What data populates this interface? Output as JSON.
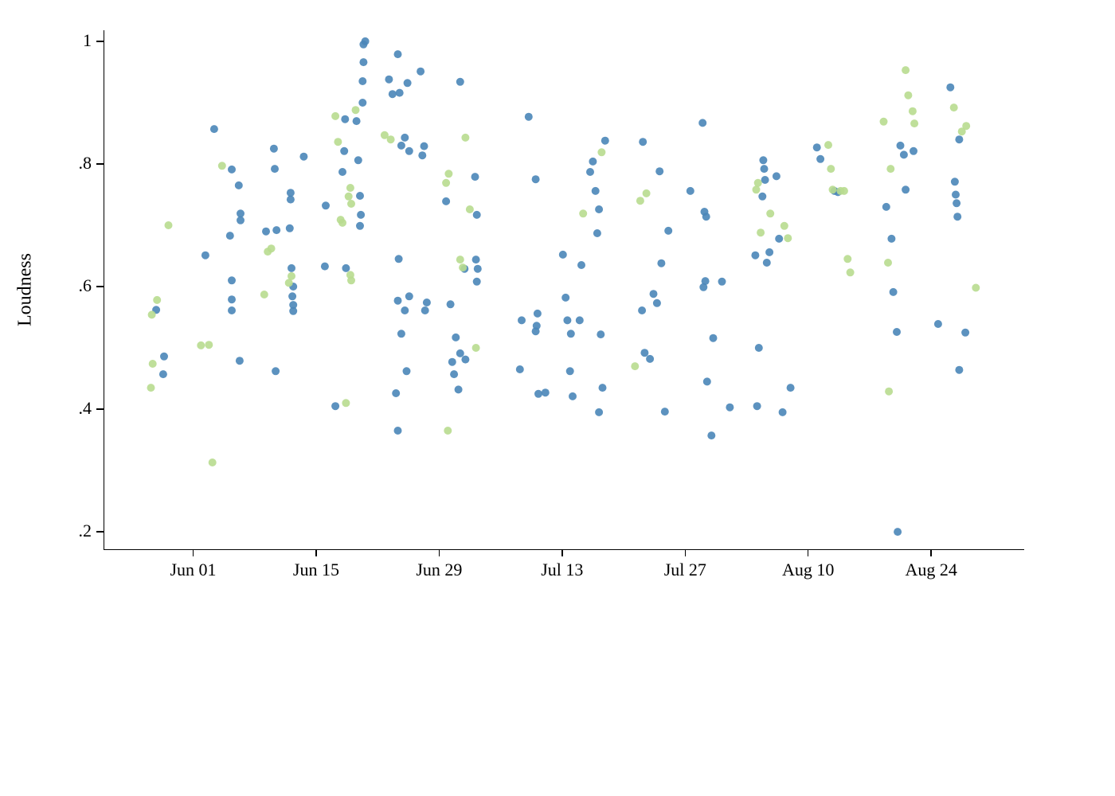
{
  "chart_data": {
    "type": "scatter",
    "title": "",
    "xlabel": "",
    "ylabel": "Loudness",
    "x_unit": "days_since_Jun_01",
    "xlim": [
      -10.2,
      94.5
    ],
    "ylim": [
      0.1715,
      1.0181
    ],
    "grid": false,
    "legend": "none",
    "x_ticks": [
      {
        "value": 0,
        "label": "Jun 01"
      },
      {
        "value": 14,
        "label": "Jun 15"
      },
      {
        "value": 28,
        "label": "Jun 29"
      },
      {
        "value": 42,
        "label": "Jul 13"
      },
      {
        "value": 56,
        "label": "Jul 27"
      },
      {
        "value": 70,
        "label": "Aug 10"
      },
      {
        "value": 84,
        "label": "Aug 24"
      }
    ],
    "y_ticks": [
      {
        "value": 0.2,
        "label": ".2"
      },
      {
        "value": 0.4,
        "label": ".4"
      },
      {
        "value": 0.6,
        "label": ".6"
      },
      {
        "value": 0.8,
        "label": ".8"
      },
      {
        "value": 1.0,
        "label": "1"
      }
    ],
    "point_radius": 5,
    "point_opacity": 0.9,
    "series": [
      {
        "name": "series-blue",
        "color": "#4a86b8",
        "points": [
          [
            -4.3,
            0.562
          ],
          [
            -3.4,
            0.486
          ],
          [
            -3.5,
            0.457
          ],
          [
            1.3,
            0.651
          ],
          [
            2.3,
            0.857
          ],
          [
            4.3,
            0.791
          ],
          [
            4.1,
            0.683
          ],
          [
            4.3,
            0.61
          ],
          [
            4.3,
            0.579
          ],
          [
            4.3,
            0.561
          ],
          [
            5.1,
            0.765
          ],
          [
            5.3,
            0.719
          ],
          [
            5.3,
            0.708
          ],
          [
            5.2,
            0.479
          ],
          [
            8.2,
            0.69
          ],
          [
            9.1,
            0.825
          ],
          [
            9.2,
            0.792
          ],
          [
            9.3,
            0.462
          ],
          [
            9.4,
            0.692
          ],
          [
            10.9,
            0.695
          ],
          [
            11.0,
            0.753
          ],
          [
            11.0,
            0.742
          ],
          [
            11.1,
            0.63
          ],
          [
            11.3,
            0.6
          ],
          [
            11.2,
            0.584
          ],
          [
            11.3,
            0.57
          ],
          [
            11.3,
            0.56
          ],
          [
            12.5,
            0.812
          ],
          [
            15.0,
            0.732
          ],
          [
            14.9,
            0.633
          ],
          [
            16.1,
            0.405
          ],
          [
            17.1,
            0.821
          ],
          [
            16.9,
            0.787
          ],
          [
            17.3,
            0.63
          ],
          [
            17.2,
            0.873
          ],
          [
            18.5,
            0.87
          ],
          [
            18.7,
            0.806
          ],
          [
            18.9,
            0.748
          ],
          [
            19.0,
            0.717
          ],
          [
            18.9,
            0.699
          ],
          [
            19.2,
            0.935
          ],
          [
            19.3,
            0.966
          ],
          [
            19.3,
            0.995
          ],
          [
            19.5,
            1.0
          ],
          [
            19.2,
            0.9
          ],
          [
            22.2,
            0.938
          ],
          [
            22.6,
            0.914
          ],
          [
            23.2,
            0.979
          ],
          [
            23.4,
            0.916
          ],
          [
            23.6,
            0.83
          ],
          [
            24.0,
            0.843
          ],
          [
            24.3,
            0.932
          ],
          [
            24.5,
            0.821
          ],
          [
            23.3,
            0.645
          ],
          [
            23.2,
            0.577
          ],
          [
            23.6,
            0.523
          ],
          [
            23.0,
            0.426
          ],
          [
            23.2,
            0.365
          ],
          [
            24.0,
            0.561
          ],
          [
            24.2,
            0.462
          ],
          [
            24.5,
            0.584
          ],
          [
            25.8,
            0.951
          ],
          [
            26.0,
            0.814
          ],
          [
            26.2,
            0.829
          ],
          [
            26.3,
            0.561
          ],
          [
            26.5,
            0.574
          ],
          [
            28.7,
            0.739
          ],
          [
            29.2,
            0.571
          ],
          [
            29.4,
            0.477
          ],
          [
            29.6,
            0.457
          ],
          [
            29.8,
            0.517
          ],
          [
            30.1,
            0.432
          ],
          [
            30.3,
            0.491
          ],
          [
            30.3,
            0.934
          ],
          [
            30.8,
            0.629
          ],
          [
            30.9,
            0.481
          ],
          [
            32.0,
            0.779
          ],
          [
            32.2,
            0.717
          ],
          [
            32.1,
            0.644
          ],
          [
            32.2,
            0.608
          ],
          [
            32.3,
            0.629
          ],
          [
            37.3,
            0.545
          ],
          [
            37.1,
            0.465
          ],
          [
            38.1,
            0.877
          ],
          [
            38.9,
            0.527
          ],
          [
            39.1,
            0.556
          ],
          [
            39.0,
            0.536
          ],
          [
            39.2,
            0.425
          ],
          [
            38.9,
            0.775
          ],
          [
            40.0,
            0.427
          ],
          [
            42.0,
            0.652
          ],
          [
            42.3,
            0.582
          ],
          [
            42.5,
            0.545
          ],
          [
            42.8,
            0.462
          ],
          [
            42.9,
            0.523
          ],
          [
            43.1,
            0.421
          ],
          [
            43.9,
            0.545
          ],
          [
            44.1,
            0.635
          ],
          [
            45.1,
            0.787
          ],
          [
            45.4,
            0.804
          ],
          [
            45.7,
            0.756
          ],
          [
            45.9,
            0.687
          ],
          [
            46.1,
            0.726
          ],
          [
            46.3,
            0.522
          ],
          [
            46.5,
            0.435
          ],
          [
            46.1,
            0.395
          ],
          [
            46.8,
            0.838
          ],
          [
            51.1,
            0.836
          ],
          [
            51.0,
            0.561
          ],
          [
            51.3,
            0.492
          ],
          [
            51.9,
            0.482
          ],
          [
            52.3,
            0.588
          ],
          [
            52.7,
            0.573
          ],
          [
            53.0,
            0.788
          ],
          [
            53.2,
            0.638
          ],
          [
            53.6,
            0.396
          ],
          [
            54.0,
            0.691
          ],
          [
            56.5,
            0.756
          ],
          [
            57.9,
            0.867
          ],
          [
            58.1,
            0.722
          ],
          [
            58.2,
            0.609
          ],
          [
            58.0,
            0.599
          ],
          [
            58.3,
            0.714
          ],
          [
            58.9,
            0.357
          ],
          [
            59.1,
            0.516
          ],
          [
            58.4,
            0.445
          ],
          [
            60.1,
            0.608
          ],
          [
            61.0,
            0.403
          ],
          [
            63.9,
            0.651
          ],
          [
            64.3,
            0.5
          ],
          [
            64.1,
            0.405
          ],
          [
            64.8,
            0.806
          ],
          [
            64.9,
            0.792
          ],
          [
            65.0,
            0.774
          ],
          [
            64.7,
            0.747
          ],
          [
            65.2,
            0.639
          ],
          [
            65.5,
            0.656
          ],
          [
            66.3,
            0.78
          ],
          [
            66.6,
            0.678
          ],
          [
            67.0,
            0.395
          ],
          [
            67.9,
            0.435
          ],
          [
            70.9,
            0.827
          ],
          [
            71.3,
            0.808
          ],
          [
            72.9,
            0.756
          ],
          [
            73.3,
            0.754
          ],
          [
            78.8,
            0.73
          ],
          [
            79.4,
            0.678
          ],
          [
            79.6,
            0.591
          ],
          [
            80.0,
            0.526
          ],
          [
            80.4,
            0.83
          ],
          [
            80.8,
            0.815
          ],
          [
            81.0,
            0.758
          ],
          [
            81.9,
            0.821
          ],
          [
            80.1,
            0.2
          ],
          [
            84.7,
            0.539
          ],
          [
            86.1,
            0.925
          ],
          [
            86.6,
            0.771
          ],
          [
            86.7,
            0.75
          ],
          [
            86.8,
            0.736
          ],
          [
            86.9,
            0.714
          ],
          [
            87.1,
            0.464
          ],
          [
            87.8,
            0.525
          ],
          [
            87.1,
            0.84
          ]
        ]
      },
      {
        "name": "series-green",
        "color": "#b8db8f",
        "points": [
          [
            -4.8,
            0.554
          ],
          [
            -4.2,
            0.578
          ],
          [
            -4.7,
            0.474
          ],
          [
            -4.9,
            0.435
          ],
          [
            -2.9,
            0.7
          ],
          [
            0.8,
            0.504
          ],
          [
            1.7,
            0.505
          ],
          [
            2.1,
            0.313
          ],
          [
            3.2,
            0.797
          ],
          [
            8.0,
            0.587
          ],
          [
            8.4,
            0.657
          ],
          [
            8.8,
            0.662
          ],
          [
            10.8,
            0.606
          ],
          [
            11.1,
            0.617
          ],
          [
            16.1,
            0.878
          ],
          [
            16.4,
            0.836
          ],
          [
            16.7,
            0.709
          ],
          [
            16.9,
            0.704
          ],
          [
            17.6,
            0.747
          ],
          [
            17.8,
            0.761
          ],
          [
            17.9,
            0.735
          ],
          [
            17.8,
            0.619
          ],
          [
            17.9,
            0.61
          ],
          [
            17.3,
            0.41
          ],
          [
            18.4,
            0.888
          ],
          [
            21.7,
            0.847
          ],
          [
            22.4,
            0.84
          ],
          [
            28.7,
            0.769
          ],
          [
            29.0,
            0.784
          ],
          [
            28.9,
            0.365
          ],
          [
            30.3,
            0.644
          ],
          [
            30.6,
            0.631
          ],
          [
            30.9,
            0.843
          ],
          [
            31.4,
            0.726
          ],
          [
            32.1,
            0.5
          ],
          [
            44.3,
            0.719
          ],
          [
            46.4,
            0.819
          ],
          [
            50.2,
            0.47
          ],
          [
            50.8,
            0.74
          ],
          [
            51.5,
            0.752
          ],
          [
            64.0,
            0.758
          ],
          [
            64.2,
            0.769
          ],
          [
            64.5,
            0.688
          ],
          [
            65.6,
            0.719
          ],
          [
            67.2,
            0.699
          ],
          [
            67.6,
            0.679
          ],
          [
            72.2,
            0.831
          ],
          [
            72.5,
            0.792
          ],
          [
            72.7,
            0.758
          ],
          [
            73.6,
            0.756
          ],
          [
            74.0,
            0.756
          ],
          [
            74.4,
            0.645
          ],
          [
            74.7,
            0.623
          ],
          [
            78.5,
            0.869
          ],
          [
            79.3,
            0.792
          ],
          [
            79.0,
            0.639
          ],
          [
            79.1,
            0.429
          ],
          [
            81.0,
            0.953
          ],
          [
            81.3,
            0.912
          ],
          [
            81.8,
            0.886
          ],
          [
            82.0,
            0.866
          ],
          [
            86.5,
            0.892
          ],
          [
            87.4,
            0.853
          ],
          [
            87.9,
            0.862
          ],
          [
            89.0,
            0.598
          ]
        ]
      }
    ]
  }
}
